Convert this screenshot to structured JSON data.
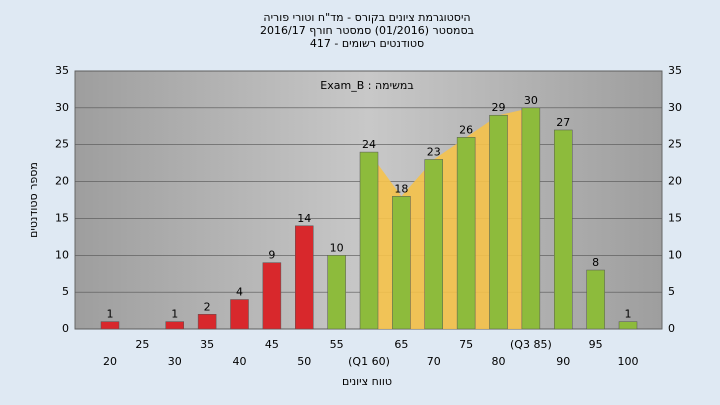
{
  "chart_data": {
    "type": "bar",
    "title": [
      "היסטוגרמת ציונים בקורס - מד\"ח וטורי פוריה",
      "בסמסטר  (01/2016)  סמסטר חורף 2016/17",
      "סטודנטים רשומים - 417"
    ],
    "annotation": "Exam_B : במשימה",
    "x_label": "טווח ציונים",
    "y_label": "מספר סטודנטים",
    "categories": [
      "20",
      "25",
      "30",
      "35",
      "40",
      "45",
      "50",
      "55",
      "(Q1 60)",
      "65",
      "70",
      "75",
      "80",
      "(Q3 85)",
      "90",
      "95",
      "100"
    ],
    "values": [
      1,
      null,
      1,
      2,
      4,
      9,
      14,
      10,
      24,
      18,
      23,
      26,
      29,
      30,
      27,
      8,
      1
    ],
    "colors": [
      "#d8282c",
      null,
      "#d8282c",
      "#d8282c",
      "#d8282c",
      "#d8282c",
      "#d8282c",
      "#8dbb3c",
      "#8dbb3c",
      "#8dbb3c",
      "#8dbb3c",
      "#8dbb3c",
      "#8dbb3c",
      "#8dbb3c",
      "#8dbb3c",
      "#8dbb3c",
      "#8dbb3c"
    ],
    "area_color": "#f5c24a",
    "ylim": [
      0,
      35
    ],
    "yticks": [
      0,
      5,
      10,
      15,
      20,
      25,
      30,
      35
    ],
    "grid": true
  }
}
